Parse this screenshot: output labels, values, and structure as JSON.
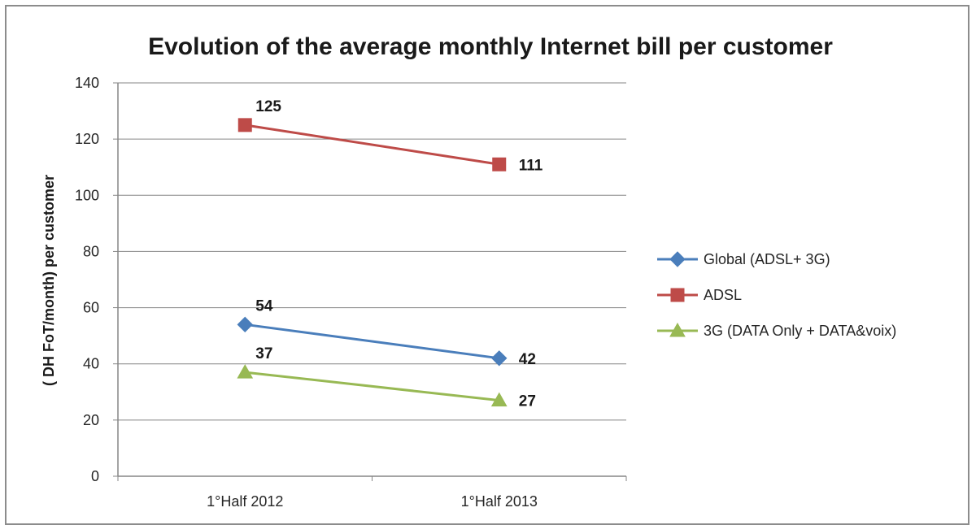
{
  "chart_data": {
    "type": "line",
    "title": "Evolution of the average monthly Internet bill per customer",
    "xlabel": "",
    "ylabel": "( DH FoT/month) per customer",
    "categories": [
      "1°Half 2012",
      "1°Half 2013"
    ],
    "ylim": [
      0,
      140
    ],
    "yticks": [
      0,
      20,
      40,
      60,
      80,
      100,
      120,
      140
    ],
    "grid": true,
    "legend_position": "right",
    "series": [
      {
        "name": "Global (ADSL+ 3G)",
        "values": [
          54,
          42
        ],
        "color": "#4a7ebb",
        "marker": "diamond",
        "labels": [
          "54",
          "42"
        ]
      },
      {
        "name": "ADSL",
        "values": [
          125,
          111
        ],
        "color": "#be4b48",
        "marker": "square",
        "labels": [
          "125",
          "111"
        ]
      },
      {
        "name": "3G (DATA Only + DATA&voix)",
        "values": [
          37,
          27
        ],
        "color": "#98b954",
        "marker": "triangle",
        "labels": [
          "37",
          "27"
        ]
      }
    ]
  }
}
